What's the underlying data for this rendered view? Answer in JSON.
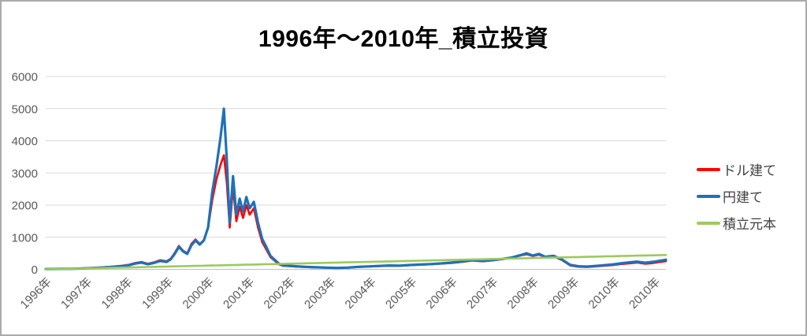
{
  "title": "1996年〜2010年_積立投資",
  "legend": {
    "items": [
      {
        "label": "ドル建て",
        "color": "#ff0000"
      },
      {
        "label": "円建て",
        "color": "#1f71b8"
      },
      {
        "label": "積立元本",
        "color": "#9dc95e"
      }
    ]
  },
  "axis": {
    "tick_label_color": "#595959",
    "gridline_color": "#d9d9d9",
    "axis_line_color": "#bfbfbf"
  },
  "chart_data": {
    "type": "line",
    "title": "1996年〜2010年_積立投資",
    "xlabel": "",
    "ylabel": "",
    "ylim": [
      0,
      6000
    ],
    "y_ticks": [
      0,
      1000,
      2000,
      3000,
      4000,
      5000,
      6000
    ],
    "x_tick_labels": [
      "1996年",
      "1997年",
      "1998年",
      "1999年",
      "2000年",
      "2001年",
      "2002年",
      "2003年",
      "2004年",
      "2005年",
      "2006年",
      "2007年",
      "2008年",
      "2009年",
      "2010年",
      "2010年"
    ],
    "grid": "horizontal",
    "legend_position": "right",
    "x": [
      1996.0,
      1996.2,
      1996.4,
      1996.6,
      1996.8,
      1997.0,
      1997.2,
      1997.4,
      1997.6,
      1997.8,
      1998.0,
      1998.15,
      1998.3,
      1998.45,
      1998.6,
      1998.75,
      1998.9,
      1999.0,
      1999.1,
      1999.2,
      1999.3,
      1999.4,
      1999.5,
      1999.6,
      1999.7,
      1999.8,
      1999.9,
      2000.0,
      2000.1,
      2000.2,
      2000.28,
      2000.35,
      2000.42,
      2000.5,
      2000.58,
      2000.66,
      2000.74,
      2000.82,
      2000.9,
      2001.0,
      2001.1,
      2001.2,
      2001.3,
      2001.4,
      2001.5,
      2001.6,
      2001.7,
      2001.85,
      2002.0,
      2002.25,
      2002.5,
      2002.75,
      2003.0,
      2003.25,
      2003.5,
      2003.75,
      2004.0,
      2004.25,
      2004.5,
      2004.75,
      2005.0,
      2005.25,
      2005.5,
      2005.75,
      2006.0,
      2006.25,
      2006.5,
      2006.75,
      2007.0,
      2007.2,
      2007.4,
      2007.55,
      2007.7,
      2007.85,
      2008.0,
      2008.2,
      2008.4,
      2008.6,
      2008.8,
      2009.0,
      2009.2,
      2009.4,
      2009.6,
      2009.8,
      2010.0,
      2010.2,
      2010.4,
      2010.6,
      2010.9
    ],
    "series": [
      {
        "name": "ドル建て",
        "color": "#ff0000",
        "values": [
          8,
          11,
          15,
          20,
          28,
          40,
          52,
          68,
          85,
          108,
          145,
          200,
          230,
          175,
          215,
          285,
          250,
          330,
          510,
          730,
          580,
          500,
          790,
          930,
          790,
          910,
          1280,
          2150,
          2800,
          3250,
          3550,
          2700,
          1300,
          2550,
          1500,
          1950,
          1600,
          2000,
          1700,
          1900,
          1300,
          850,
          620,
          380,
          270,
          160,
          110,
          100,
          88,
          70,
          60,
          50,
          42,
          52,
          72,
          88,
          100,
          115,
          110,
          130,
          145,
          158,
          178,
          200,
          230,
          275,
          250,
          280,
          320,
          365,
          430,
          470,
          415,
          460,
          375,
          405,
          290,
          120,
          80,
          70,
          90,
          110,
          130,
          160,
          185,
          210,
          175,
          200,
          255
        ]
      },
      {
        "name": "円建て",
        "color": "#1f71b8",
        "values": [
          8,
          10,
          14,
          18,
          25,
          35,
          45,
          60,
          75,
          95,
          130,
          180,
          210,
          160,
          200,
          260,
          230,
          310,
          480,
          700,
          560,
          480,
          750,
          900,
          770,
          900,
          1300,
          2400,
          3200,
          4100,
          5000,
          3400,
          1450,
          2900,
          1700,
          2200,
          1800,
          2250,
          1900,
          2100,
          1450,
          950,
          700,
          420,
          300,
          180,
          120,
          110,
          95,
          75,
          65,
          55,
          45,
          55,
          75,
          90,
          105,
          120,
          115,
          135,
          150,
          165,
          185,
          210,
          240,
          290,
          260,
          290,
          330,
          370,
          440,
          500,
          430,
          480,
          390,
          420,
          310,
          140,
          95,
          85,
          105,
          125,
          150,
          185,
          215,
          240,
          205,
          235,
          300
        ]
      },
      {
        "name": "積立元本",
        "color": "#9dc95e",
        "values": [
          0,
          6,
          12,
          18,
          24,
          30,
          36,
          42,
          48,
          54,
          60,
          65,
          69,
          74,
          78,
          83,
          87,
          90,
          93,
          96,
          99,
          102,
          105,
          108,
          111,
          114,
          117,
          120,
          123,
          126,
          128,
          131,
          133,
          135,
          137,
          140,
          142,
          145,
          147,
          150,
          153,
          156,
          159,
          162,
          165,
          168,
          171,
          176,
          180,
          188,
          195,
          203,
          210,
          218,
          225,
          233,
          240,
          248,
          255,
          263,
          270,
          278,
          285,
          293,
          300,
          308,
          315,
          323,
          330,
          336,
          342,
          347,
          351,
          356,
          360,
          366,
          372,
          378,
          384,
          390,
          396,
          402,
          408,
          414,
          420,
          426,
          432,
          438,
          447
        ]
      }
    ]
  }
}
